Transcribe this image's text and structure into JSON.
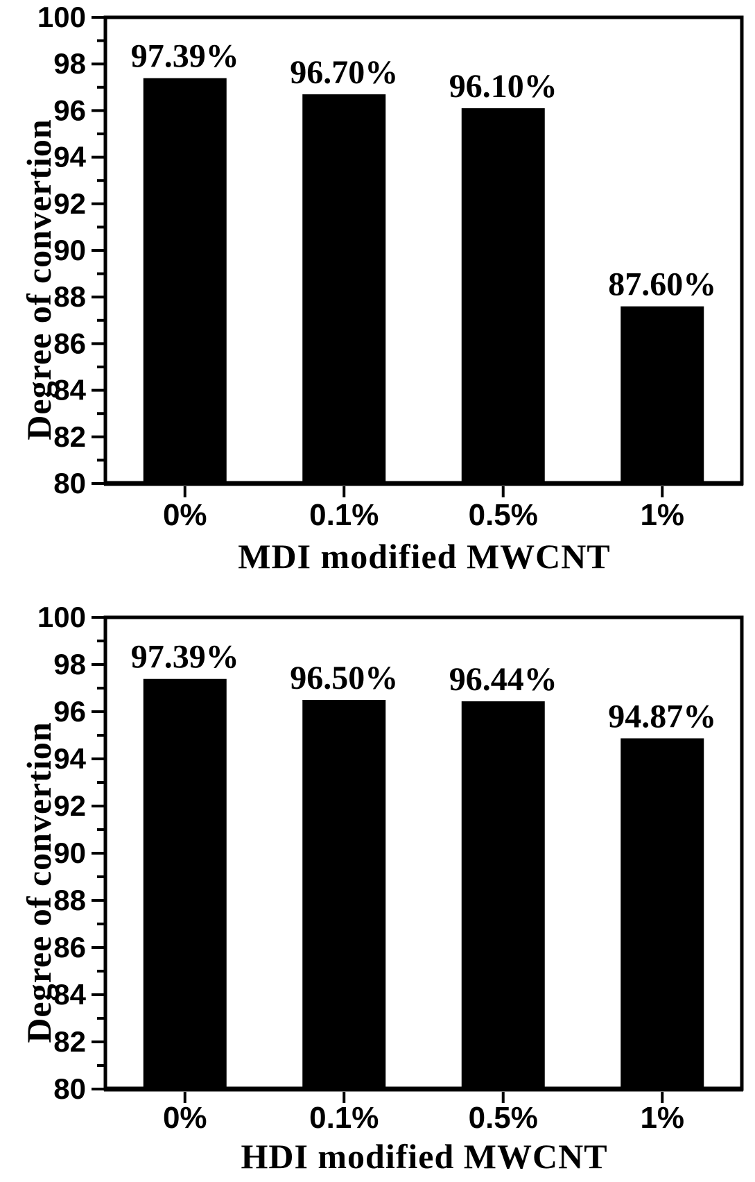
{
  "page": {
    "background": "#ffffff",
    "text_color": "#000000"
  },
  "chart_data": [
    {
      "type": "bar",
      "categories": [
        "0%",
        "0.1%",
        "0.5%",
        "1%"
      ],
      "values": [
        97.39,
        96.7,
        96.1,
        87.6
      ],
      "value_labels": [
        "97.39%",
        "96.70%",
        "96.10%",
        "87.60%"
      ],
      "xlabel": "MDI modified MWCNT",
      "ylabel": "Degree of convertion",
      "ylim": [
        80,
        100
      ],
      "ytick_step": 2,
      "yminor_step": 1,
      "yticks": [
        80,
        82,
        84,
        86,
        88,
        90,
        92,
        94,
        96,
        98,
        100
      ],
      "bar_color": "#000000",
      "axis_color": "#000000",
      "grid": false,
      "legend": "none"
    },
    {
      "type": "bar",
      "categories": [
        "0%",
        "0.1%",
        "0.5%",
        "1%"
      ],
      "values": [
        97.39,
        96.5,
        96.44,
        94.87
      ],
      "value_labels": [
        "97.39%",
        "96.50%",
        "96.44%",
        "94.87%"
      ],
      "xlabel": "HDI modified MWCNT",
      "ylabel": "Degree of convertion",
      "ylim": [
        80,
        100
      ],
      "ytick_step": 2,
      "yminor_step": 1,
      "yticks": [
        80,
        82,
        84,
        86,
        88,
        90,
        92,
        94,
        96,
        98,
        100
      ],
      "bar_color": "#000000",
      "axis_color": "#000000",
      "grid": false,
      "legend": "none"
    }
  ]
}
